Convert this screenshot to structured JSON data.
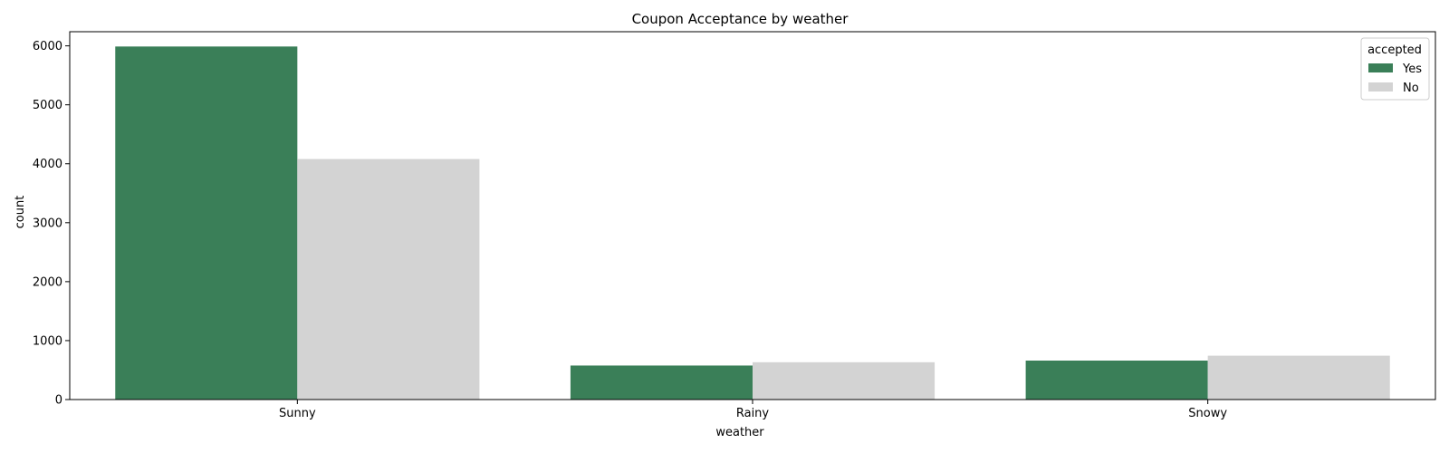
{
  "chart_data": {
    "type": "bar",
    "title": "Coupon Acceptance by weather",
    "xlabel": "weather",
    "ylabel": "count",
    "categories": [
      "Sunny",
      "Rainy",
      "Snowy"
    ],
    "series": [
      {
        "name": "Yes",
        "values": [
          5989,
          577,
          661
        ]
      },
      {
        "name": "No",
        "values": [
          4080,
          633,
          744
        ]
      }
    ],
    "ylim": [
      0,
      6240
    ],
    "yticks": [
      0,
      1000,
      2000,
      3000,
      4000,
      5000,
      6000
    ],
    "legend": {
      "title": "accepted",
      "position": "top-right"
    },
    "grid": false
  },
  "colors": {
    "Yes": "#3a7f58",
    "No": "#d3d3d3",
    "axis": "#000000"
  }
}
